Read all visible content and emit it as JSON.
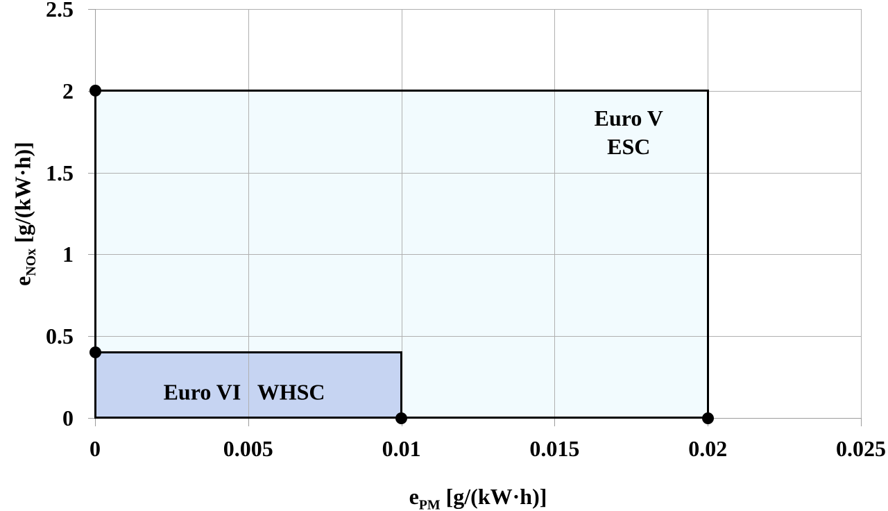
{
  "chart_data": {
    "type": "area",
    "title": "",
    "xlabel": "e_PM [g/(kW·h)]",
    "ylabel": "e_NOx [g/(kW·h)]",
    "xlabel_parts": {
      "base": "e",
      "sub": "PM",
      "unit": " [g/(kW·h)]"
    },
    "ylabel_parts": {
      "base": "e",
      "sub": "NOx",
      "unit": " [g/(kW·h)]"
    },
    "xlim": [
      0,
      0.025
    ],
    "ylim": [
      0,
      2.5
    ],
    "grid": true,
    "legend_position": "none",
    "x_ticks": [
      {
        "value": 0,
        "label": "0"
      },
      {
        "value": 0.005,
        "label": "0.005"
      },
      {
        "value": 0.01,
        "label": "0.01"
      },
      {
        "value": 0.015,
        "label": "0.015"
      },
      {
        "value": 0.02,
        "label": "0.02"
      },
      {
        "value": 0.025,
        "label": "0.025"
      }
    ],
    "y_ticks": [
      {
        "value": 0,
        "label": "0"
      },
      {
        "value": 0.5,
        "label": "0.5"
      },
      {
        "value": 1,
        "label": "1"
      },
      {
        "value": 1.5,
        "label": "1.5"
      },
      {
        "value": 2,
        "label": "2"
      },
      {
        "value": 2.5,
        "label": "2.5"
      }
    ],
    "regions": [
      {
        "id": "euro-v-esc",
        "name": "Euro V ESC",
        "label_lines": [
          "Euro V",
          "ESC"
        ],
        "label_pos": [
          0.01742,
          1.745
        ],
        "pm_limit": 0.02,
        "nox_limit": 2.0,
        "fill": "#f2fbfe",
        "border": "#000000"
      },
      {
        "id": "euro-vi-whsc",
        "name": "Euro VI WHSC",
        "label_lines": [
          "Euro VI   WHSC"
        ],
        "label_pos": [
          0.00487,
          0.157
        ],
        "pm_limit": 0.01,
        "nox_limit": 0.4,
        "fill": "#c6d4f2",
        "border": "#000000"
      }
    ],
    "markers": [
      {
        "x": 0,
        "y": 2
      },
      {
        "x": 0,
        "y": 0.4
      },
      {
        "x": 0.01,
        "y": 0
      },
      {
        "x": 0.02,
        "y": 0
      }
    ],
    "colors": {
      "gridline": "#b0b0b0",
      "axis": "#9c9c9c",
      "marker": "#000000",
      "region_border": "#000000"
    }
  }
}
